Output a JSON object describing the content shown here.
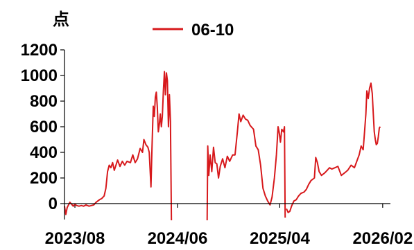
{
  "chart_data": {
    "type": "line",
    "ylabel": "点",
    "ylim": [
      -100,
      1200
    ],
    "yticks": [
      0,
      200,
      400,
      600,
      800,
      1000,
      1200
    ],
    "xlim": [
      "2023-07-20",
      "2026-03-15"
    ],
    "xticks": [
      {
        "date": "2023-08-20",
        "label": "2023/08"
      },
      {
        "date": "2024-06-20",
        "label": "2024/06"
      },
      {
        "date": "2025-04-20",
        "label": "2025/04"
      },
      {
        "date": "2026-02-20",
        "label": "2026/02"
      }
    ],
    "legend": "top-center",
    "color": "#d7191c",
    "series": [
      {
        "name": "06-10",
        "points": [
          [
            "2023-07-20",
            -20
          ],
          [
            "2023-07-24",
            -85
          ],
          [
            "2023-07-28",
            -30
          ],
          [
            "2023-08-01",
            -10
          ],
          [
            "2023-08-05",
            10
          ],
          [
            "2023-08-10",
            -5
          ],
          [
            "2023-08-15",
            -20
          ],
          [
            "2023-08-20",
            -5
          ],
          [
            "2023-08-25",
            -15
          ],
          [
            "2023-09-01",
            -20
          ],
          [
            "2023-09-08",
            -15
          ],
          [
            "2023-09-15",
            -20
          ],
          [
            "2023-09-22",
            -10
          ],
          [
            "2023-10-01",
            -20
          ],
          [
            "2023-10-08",
            -15
          ],
          [
            "2023-10-15",
            -10
          ],
          [
            "2023-10-22",
            10
          ],
          [
            "2023-11-01",
            30
          ],
          [
            "2023-11-08",
            40
          ],
          [
            "2023-11-15",
            60
          ],
          [
            "2023-11-20",
            120
          ],
          [
            "2023-11-25",
            250
          ],
          [
            "2023-11-30",
            300
          ],
          [
            "2023-12-05",
            280
          ],
          [
            "2023-12-10",
            320
          ],
          [
            "2023-12-15",
            260
          ],
          [
            "2023-12-20",
            300
          ],
          [
            "2023-12-25",
            340
          ],
          [
            "2024-01-01",
            290
          ],
          [
            "2024-01-08",
            330
          ],
          [
            "2024-01-15",
            300
          ],
          [
            "2024-01-22",
            330
          ],
          [
            "2024-02-01",
            320
          ],
          [
            "2024-02-08",
            380
          ],
          [
            "2024-02-15",
            320
          ],
          [
            "2024-02-22",
            350
          ],
          [
            "2024-03-01",
            430
          ],
          [
            "2024-03-08",
            400
          ],
          [
            "2024-03-12",
            500
          ],
          [
            "2024-03-18",
            460
          ],
          [
            "2024-03-24",
            440
          ],
          [
            "2024-03-28",
            400
          ],
          [
            "2024-04-02",
            130
          ],
          [
            "2024-04-05",
            420
          ],
          [
            "2024-04-09",
            760
          ],
          [
            "2024-04-12",
            680
          ],
          [
            "2024-04-15",
            830
          ],
          [
            "2024-04-18",
            870
          ],
          [
            "2024-04-21",
            750
          ],
          [
            "2024-04-24",
            560
          ],
          [
            "2024-04-27",
            620
          ],
          [
            "2024-04-30",
            700
          ],
          [
            "2024-05-03",
            600
          ],
          [
            "2024-05-06",
            680
          ],
          [
            "2024-05-09",
            880
          ],
          [
            "2024-05-12",
            1030
          ],
          [
            "2024-05-15",
            850
          ],
          [
            "2024-05-18",
            1020
          ],
          [
            "2024-05-21",
            960
          ],
          [
            "2024-05-24",
            600
          ],
          [
            "2024-05-27",
            850
          ],
          [
            "2024-05-30",
            640
          ],
          [
            "2024-06-02",
            -130
          ]
        ]
      },
      {
        "name": "06-10",
        "points": [
          [
            "2024-09-16",
            -130
          ],
          [
            "2024-09-18",
            450
          ],
          [
            "2024-09-21",
            220
          ],
          [
            "2024-09-25",
            380
          ],
          [
            "2024-09-30",
            250
          ],
          [
            "2024-10-05",
            440
          ],
          [
            "2024-10-10",
            320
          ],
          [
            "2024-10-15",
            310
          ],
          [
            "2024-10-20",
            200
          ],
          [
            "2024-10-25",
            290
          ],
          [
            "2024-11-01",
            350
          ],
          [
            "2024-11-08",
            280
          ],
          [
            "2024-11-15",
            370
          ],
          [
            "2024-11-22",
            330
          ],
          [
            "2024-12-01",
            380
          ],
          [
            "2024-12-08",
            380
          ],
          [
            "2024-12-15",
            560
          ],
          [
            "2024-12-20",
            700
          ],
          [
            "2024-12-25",
            640
          ],
          [
            "2025-01-01",
            690
          ],
          [
            "2025-01-08",
            660
          ],
          [
            "2025-01-15",
            650
          ],
          [
            "2025-01-22",
            610
          ],
          [
            "2025-02-01",
            580
          ],
          [
            "2025-02-08",
            450
          ],
          [
            "2025-02-15",
            420
          ],
          [
            "2025-02-22",
            300
          ],
          [
            "2025-03-01",
            120
          ],
          [
            "2025-03-08",
            60
          ],
          [
            "2025-03-15",
            20
          ],
          [
            "2025-03-22",
            -10
          ],
          [
            "2025-03-28",
            50
          ],
          [
            "2025-04-04",
            200
          ],
          [
            "2025-04-10",
            380
          ],
          [
            "2025-04-15",
            600
          ],
          [
            "2025-04-18",
            560
          ],
          [
            "2025-04-22",
            480
          ],
          [
            "2025-04-26",
            580
          ],
          [
            "2025-05-01",
            560
          ],
          [
            "2025-05-04",
            600
          ],
          [
            "2025-05-06",
            -110
          ]
        ]
      },
      {
        "name": "06-10",
        "points": [
          [
            "2025-05-10",
            -40
          ],
          [
            "2025-05-15",
            -70
          ],
          [
            "2025-05-20",
            -60
          ],
          [
            "2025-05-25",
            -20
          ],
          [
            "2025-06-01",
            20
          ],
          [
            "2025-06-08",
            30
          ],
          [
            "2025-06-15",
            60
          ],
          [
            "2025-06-22",
            80
          ],
          [
            "2025-07-01",
            90
          ],
          [
            "2025-07-08",
            110
          ],
          [
            "2025-07-15",
            150
          ],
          [
            "2025-07-22",
            180
          ],
          [
            "2025-08-01",
            200
          ],
          [
            "2025-08-05",
            360
          ],
          [
            "2025-08-10",
            320
          ],
          [
            "2025-08-15",
            250
          ],
          [
            "2025-08-22",
            220
          ],
          [
            "2025-09-01",
            240
          ],
          [
            "2025-09-08",
            260
          ],
          [
            "2025-09-15",
            280
          ],
          [
            "2025-09-22",
            270
          ],
          [
            "2025-10-01",
            280
          ],
          [
            "2025-10-10",
            290
          ],
          [
            "2025-10-20",
            220
          ],
          [
            "2025-10-30",
            240
          ],
          [
            "2025-11-08",
            260
          ],
          [
            "2025-11-18",
            300
          ],
          [
            "2025-11-28",
            280
          ],
          [
            "2025-12-05",
            330
          ],
          [
            "2025-12-12",
            380
          ],
          [
            "2025-12-18",
            450
          ],
          [
            "2025-12-24",
            420
          ],
          [
            "2025-12-28",
            560
          ],
          [
            "2026-01-01",
            700
          ],
          [
            "2026-01-04",
            880
          ],
          [
            "2026-01-08",
            820
          ],
          [
            "2026-01-12",
            900
          ],
          [
            "2026-01-16",
            940
          ],
          [
            "2026-01-20",
            860
          ],
          [
            "2026-01-23",
            700
          ],
          [
            "2026-01-26",
            560
          ],
          [
            "2026-01-29",
            500
          ],
          [
            "2026-02-01",
            460
          ],
          [
            "2026-02-04",
            470
          ],
          [
            "2026-02-07",
            520
          ],
          [
            "2026-02-10",
            590
          ],
          [
            "2026-02-13",
            600
          ]
        ]
      }
    ]
  }
}
